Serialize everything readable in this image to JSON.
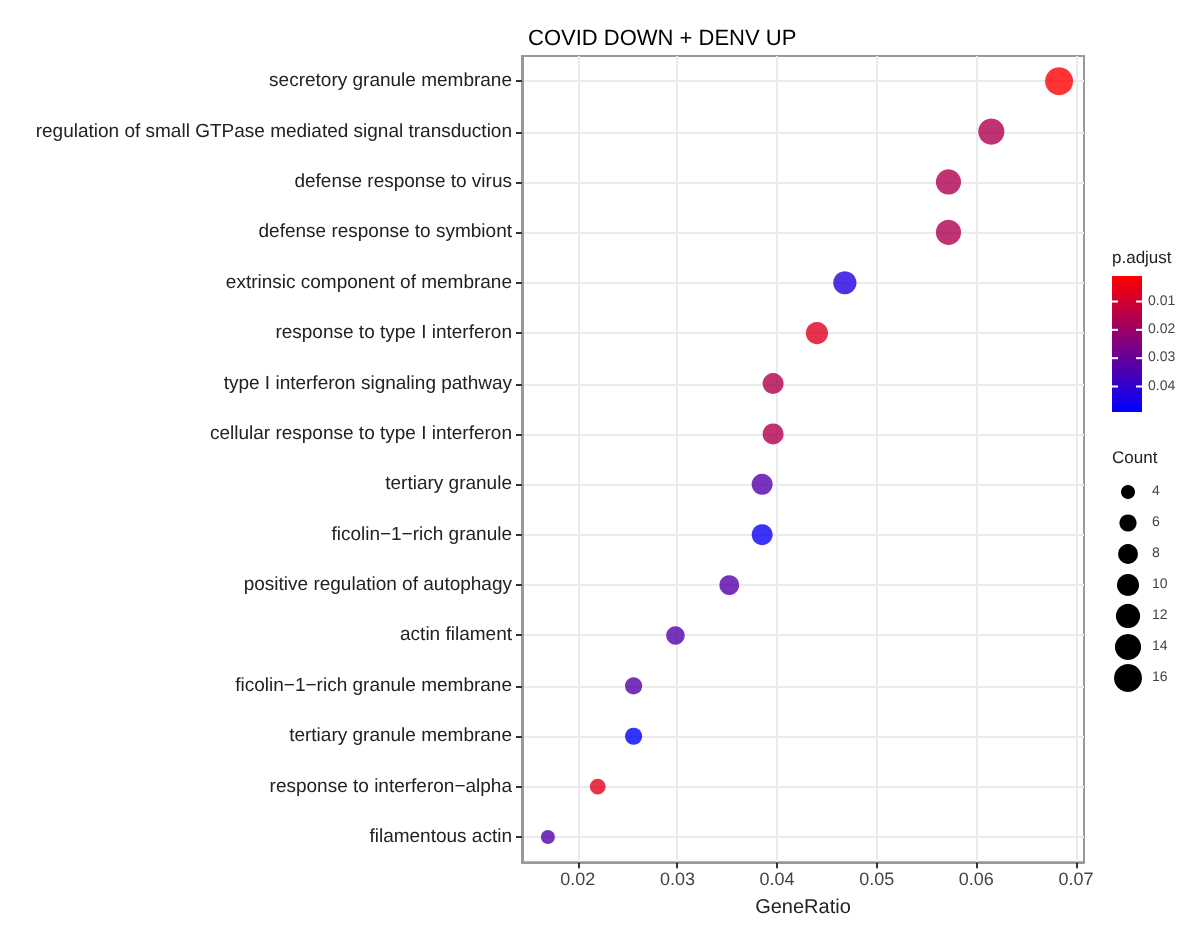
{
  "chart_data": {
    "type": "bubble",
    "orientation": "horizontal",
    "title": "COVID DOWN + DENV UP",
    "xlabel": "GeneRatio",
    "categories": [
      "secretory granule membrane",
      "regulation of small GTPase mediated signal transduction",
      "defense response to virus",
      "defense response to symbiont",
      "extrinsic component of membrane",
      "response to type I interferon",
      "type I interferon signaling pathway",
      "cellular response to type I interferon",
      "tertiary granule",
      "ficolin−1−rich granule",
      "positive regulation of autophagy",
      "actin filament",
      "ficolin−1−rich granule membrane",
      "tertiary granule membrane",
      "response to interferon−alpha",
      "filamentous actin"
    ],
    "values": [
      0.0683,
      0.0615,
      0.0572,
      0.0572,
      0.0468,
      0.044,
      0.0396,
      0.0396,
      0.0385,
      0.0385,
      0.0352,
      0.0298,
      0.0256,
      0.0256,
      0.022,
      0.017
    ],
    "sizes": [
      16,
      14,
      13,
      13,
      11,
      10,
      9,
      9,
      9,
      9,
      8,
      7,
      6,
      6,
      5,
      4
    ],
    "size_legend": [
      4,
      6,
      8,
      10,
      12,
      14,
      16
    ],
    "legend_title": "Count",
    "cvalues": [
      0.001,
      0.016,
      0.016,
      0.016,
      0.043,
      0.007,
      0.016,
      0.016,
      0.033,
      0.047,
      0.033,
      0.033,
      0.033,
      0.049,
      0.006,
      0.033
    ],
    "clim": [
      0.001,
      0.049
    ],
    "cticks": [
      0.01,
      0.02,
      0.03,
      0.04
    ],
    "clabel": "p.adjust",
    "xlim": [
      0.0144,
      0.0708
    ],
    "xticks": [
      0.02,
      0.03,
      0.04,
      0.05,
      0.06,
      0.07
    ],
    "grid": true,
    "marker": "circle"
  }
}
